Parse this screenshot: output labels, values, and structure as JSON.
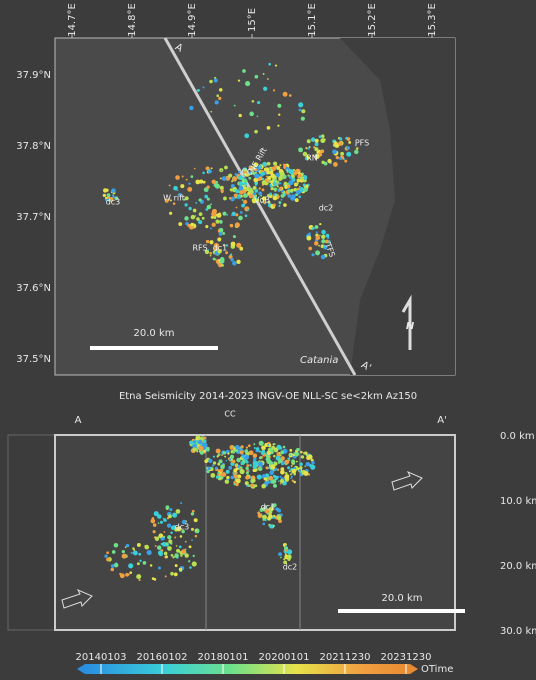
{
  "map": {
    "lon_labels": [
      "14.7°E",
      "14.8°E",
      "14.9°E",
      "15°E",
      "15.1°E",
      "15.2°E",
      "15.3°E"
    ],
    "lat_labels": [
      "37.9°N",
      "37.8°N",
      "37.7°N",
      "37.6°N",
      "37.5°N"
    ],
    "section_ends": [
      "A",
      "A'"
    ],
    "features": [
      "NE Rift",
      "PFS",
      "RN",
      "CC",
      "VdB",
      "dc2",
      "dc3",
      "W rift",
      "RFS",
      "dc1",
      "TFS"
    ],
    "city": "Catania",
    "scale_bar": "20.0 km",
    "north": "N"
  },
  "section": {
    "title": "Etna Seismicity 2014-2023 INGV-OE NLL-SC se<2km Az150",
    "ends": [
      "A",
      "A'"
    ],
    "depth_labels": [
      "0.0 km",
      "10.0 km",
      "20.0 km",
      "30.0 km"
    ],
    "features": [
      "CC",
      "dc1",
      "dc3",
      "dc2"
    ],
    "scale_bar": "20.0 km"
  },
  "colorbar": {
    "labels": [
      "20140103",
      "20160102",
      "20180101",
      "20200101",
      "20211230",
      "20231230"
    ],
    "title": "OTime"
  }
}
